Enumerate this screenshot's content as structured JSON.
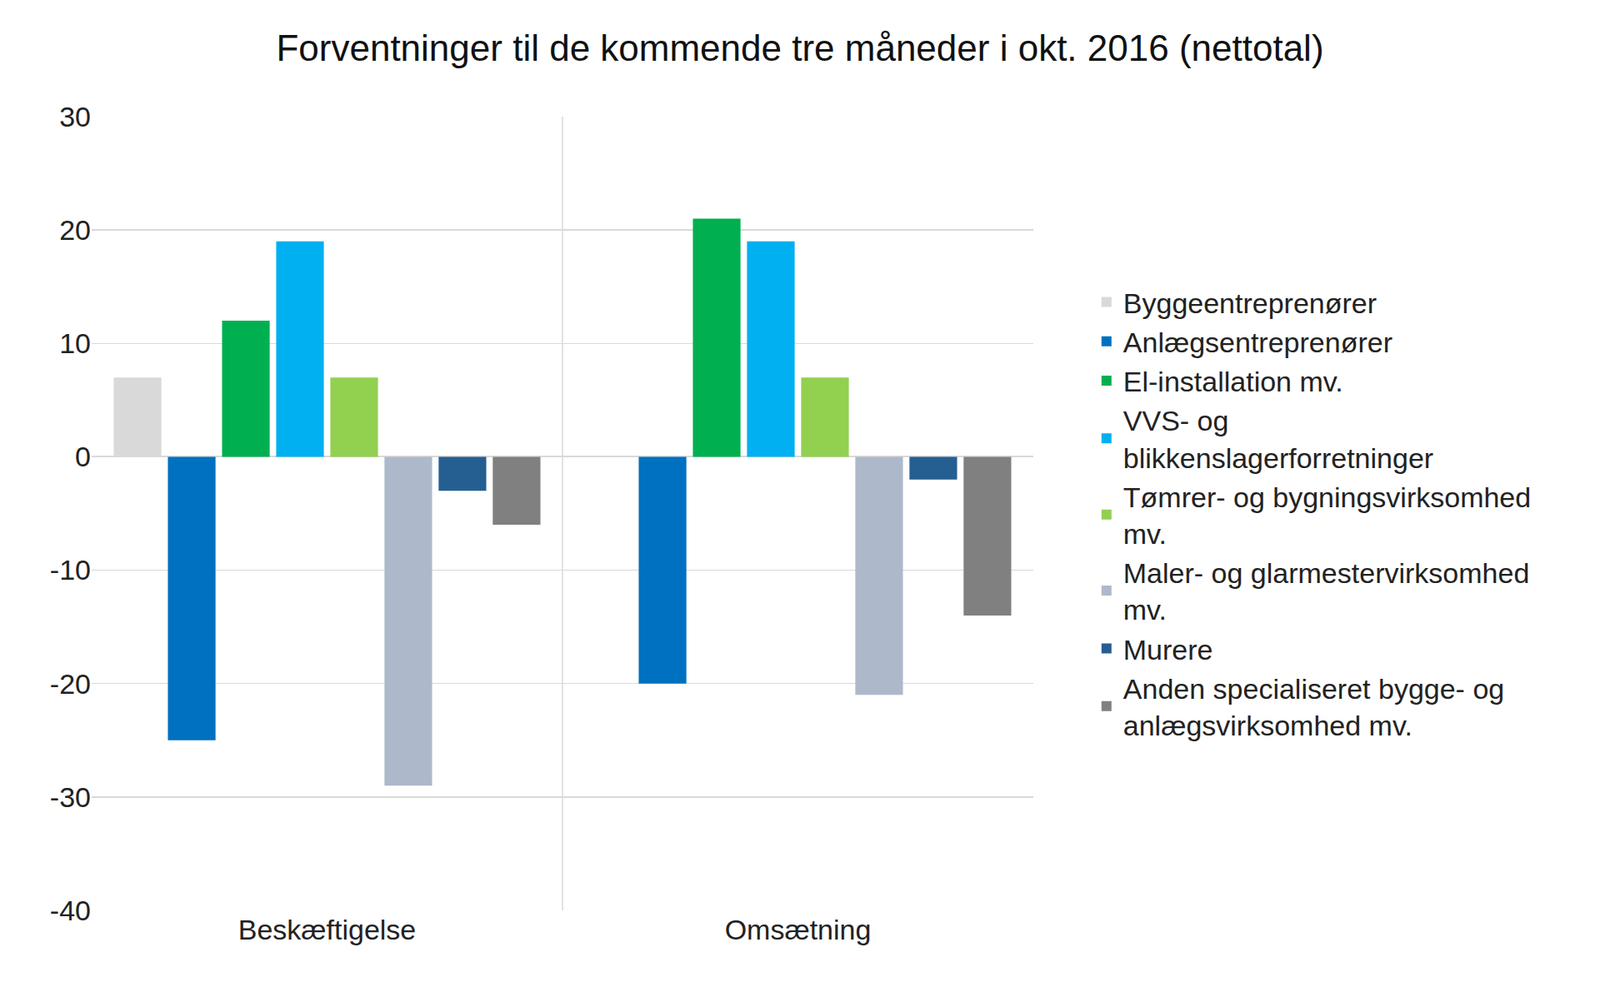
{
  "chart_data": {
    "type": "bar",
    "title": "Forventninger til de kommende tre måneder i okt. 2016 (nettotal)",
    "categories": [
      "Beskæftigelse",
      "Omsætning"
    ],
    "series": [
      {
        "name": "Byggeentreprenører",
        "color": "#d9d9d9",
        "values": [
          7,
          null
        ]
      },
      {
        "name": "Anlægsentreprenører",
        "color": "#0070c0",
        "values": [
          -25,
          -20
        ]
      },
      {
        "name": "El-installation mv.",
        "color": "#00b050",
        "values": [
          12,
          21
        ]
      },
      {
        "name": "VVS- og blikkenslagerforretninger",
        "color": "#00b0f0",
        "values": [
          19,
          19
        ]
      },
      {
        "name": "Tømrer- og bygningsvirksomhed mv.",
        "color": "#92d050",
        "values": [
          7,
          7
        ]
      },
      {
        "name": "Maler- og glarmestervirksomhed mv.",
        "color": "#adb9ca",
        "values": [
          -29,
          -21
        ]
      },
      {
        "name": "Murere",
        "color": "#255e91",
        "values": [
          -3,
          -2
        ]
      },
      {
        "name": "Anden specialiseret bygge- og anlægsvirksomhed mv.",
        "color": "#808080",
        "values": [
          -6,
          -14
        ]
      }
    ],
    "ylim": [
      -40,
      30
    ],
    "yticks": [
      -40,
      -30,
      -20,
      -10,
      0,
      10,
      20,
      30
    ],
    "grid": true,
    "legend": "right"
  }
}
